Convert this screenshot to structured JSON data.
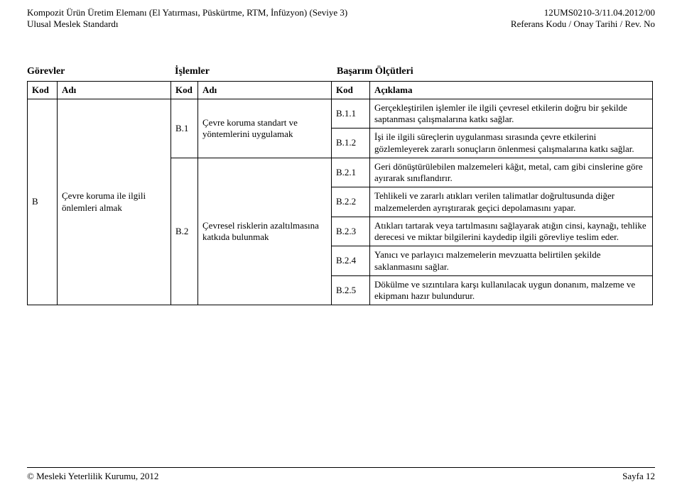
{
  "header": {
    "left_top": "Kompozit Ürün Üretim Elemanı (El Yatırması, Püskürtme, RTM, İnfüzyon) (Seviye 3)",
    "left_bottom": "Ulusal Meslek Standardı",
    "right_top": "12UMS0210-3/11.04.2012/00",
    "right_bottom": "Referans Kodu / Onay Tarihi / Rev. No"
  },
  "section_heads": {
    "gorevler": "Görevler",
    "islemler": "İşlemler",
    "basarim": "Başarım Ölçütleri"
  },
  "col_heads": {
    "kod": "Kod",
    "adi": "Adı",
    "aciklama": "Açıklama"
  },
  "gorev": {
    "kod": "B",
    "adi": "Çevre koruma ile ilgili önlemleri almak"
  },
  "islemler": [
    {
      "kod": "B.1",
      "adi": "Çevre koruma standart ve yöntemlerini uygulamak"
    },
    {
      "kod": "B.2",
      "adi": "Çevresel risklerin azaltılmasına katkıda bulunmak"
    }
  ],
  "olcutler": {
    "b1": [
      {
        "kod": "B.1.1",
        "aciklama": "Gerçekleştirilen işlemler ile ilgili çevresel etkilerin doğru bir şekilde saptanması çalışmalarına katkı sağlar."
      },
      {
        "kod": "B.1.2",
        "aciklama": "İşi ile ilgili süreçlerin uygulanması sırasında çevre etkilerini gözlemleyerek zararlı sonuçların önlenmesi çalışmalarına katkı sağlar."
      }
    ],
    "b2": [
      {
        "kod": "B.2.1",
        "aciklama": "Geri dönüştürülebilen malzemeleri kâğıt, metal, cam gibi cinslerine göre ayırarak sınıflandırır."
      },
      {
        "kod": "B.2.2",
        "aciklama": "Tehlikeli ve zararlı atıkları verilen talimatlar doğrultusunda diğer malzemelerden ayrıştırarak geçici depolamasını yapar."
      },
      {
        "kod": "B.2.3",
        "aciklama": "Atıkları tartarak veya tartılmasını sağlayarak atığın cinsi, kaynağı, tehlike derecesi ve miktar bilgilerini kaydedip ilgili görevliye teslim eder."
      },
      {
        "kod": "B.2.4",
        "aciklama": "Yanıcı ve parlayıcı malzemelerin mevzuatta belirtilen şekilde saklanmasını sağlar."
      },
      {
        "kod": "B.2.5",
        "aciklama": "Dökülme ve sızıntılara karşı kullanılacak uygun donanım, malzeme ve ekipmanı hazır bulundurur."
      }
    ]
  },
  "footer": {
    "left": "© Mesleki Yeterlilik Kurumu, 2012",
    "right": "Sayfa 12"
  }
}
